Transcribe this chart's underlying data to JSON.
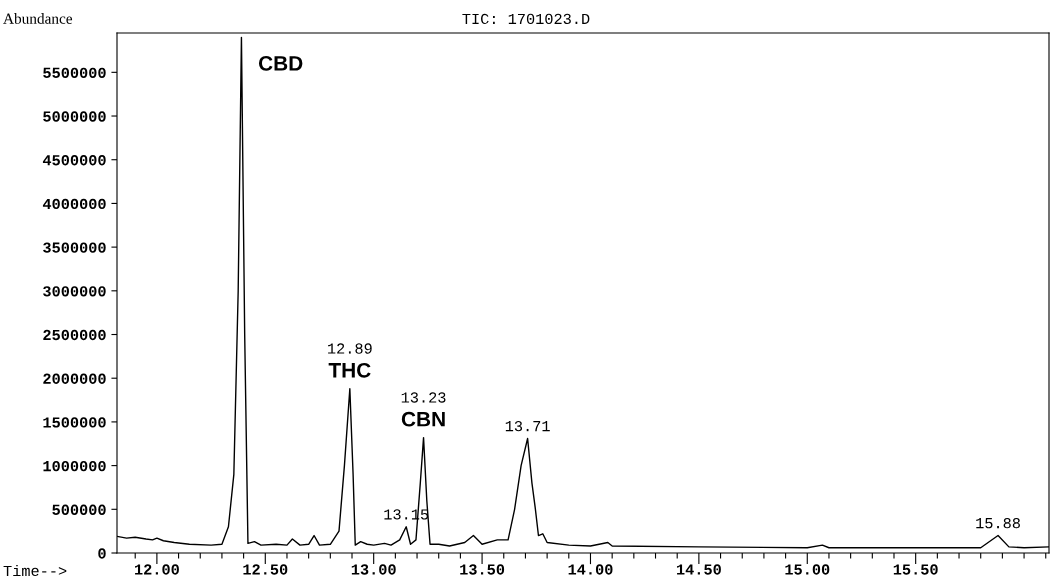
{
  "chart_data": {
    "type": "line",
    "title": "TIC: 1701023.D",
    "xlabel": "Time-->",
    "ylabel": "Abundance",
    "x": [
      11.816,
      11.86,
      11.9,
      11.95,
      11.98,
      12.0,
      12.03,
      12.08,
      12.15,
      12.25,
      12.3,
      12.33,
      12.355,
      12.375,
      12.39,
      12.405,
      12.42,
      12.45,
      12.48,
      12.55,
      12.6,
      12.625,
      12.66,
      12.7,
      12.725,
      12.75,
      12.8,
      12.84,
      12.865,
      12.89,
      12.905,
      12.915,
      12.94,
      12.97,
      13.0,
      13.05,
      13.08,
      13.12,
      13.15,
      13.17,
      13.195,
      13.215,
      13.23,
      13.245,
      13.26,
      13.3,
      13.35,
      13.42,
      13.46,
      13.5,
      13.57,
      13.62,
      13.65,
      13.68,
      13.71,
      13.73,
      13.745,
      13.76,
      13.78,
      13.8,
      13.9,
      14.0,
      14.08,
      14.1,
      14.5,
      15.0,
      15.07,
      15.1,
      15.5,
      15.8,
      15.88,
      15.93,
      16.0,
      16.115
    ],
    "series": [
      {
        "color": "#000000",
        "values": [
          190000,
          170000,
          180000,
          160000,
          150000,
          170000,
          140000,
          120000,
          100000,
          90000,
          100000,
          300000,
          900000,
          3000000,
          5900000,
          2500000,
          110000,
          130000,
          90000,
          100000,
          90000,
          160000,
          90000,
          100000,
          200000,
          90000,
          100000,
          250000,
          1000000,
          1880000,
          900000,
          90000,
          130000,
          100000,
          90000,
          110000,
          90000,
          150000,
          300000,
          100000,
          150000,
          800000,
          1320000,
          600000,
          100000,
          100000,
          80000,
          120000,
          200000,
          100000,
          150000,
          150000,
          500000,
          1000000,
          1310000,
          800000,
          520000,
          200000,
          220000,
          120000,
          90000,
          80000,
          120000,
          80000,
          70000,
          60000,
          90000,
          60000,
          60000,
          60000,
          200000,
          70000,
          60000,
          70000
        ]
      }
    ],
    "xlim": [
      11.816,
      16.115
    ],
    "xticks": [
      {
        "value": 11.9,
        "label": null
      },
      {
        "value": 12.0,
        "label": "12.00"
      },
      {
        "value": 12.1,
        "label": null
      },
      {
        "value": 12.2,
        "label": null
      },
      {
        "value": 12.3,
        "label": null
      },
      {
        "value": 12.4,
        "label": null
      },
      {
        "value": 12.5,
        "label": "12.50"
      },
      {
        "value": 12.6,
        "label": null
      },
      {
        "value": 12.7,
        "label": null
      },
      {
        "value": 12.8,
        "label": null
      },
      {
        "value": 12.9,
        "label": null
      },
      {
        "value": 13.0,
        "label": "13.00"
      },
      {
        "value": 13.1,
        "label": null
      },
      {
        "value": 13.2,
        "label": null
      },
      {
        "value": 13.3,
        "label": null
      },
      {
        "value": 13.4,
        "label": null
      },
      {
        "value": 13.5,
        "label": "13.50"
      },
      {
        "value": 13.6,
        "label": null
      },
      {
        "value": 13.7,
        "label": null
      },
      {
        "value": 13.8,
        "label": null
      },
      {
        "value": 13.9,
        "label": null
      },
      {
        "value": 14.0,
        "label": "14.00"
      },
      {
        "value": 14.1,
        "label": null
      },
      {
        "value": 14.2,
        "label": null
      },
      {
        "value": 14.3,
        "label": null
      },
      {
        "value": 14.4,
        "label": null
      },
      {
        "value": 14.5,
        "label": "14.50"
      },
      {
        "value": 14.6,
        "label": null
      },
      {
        "value": 14.7,
        "label": null
      },
      {
        "value": 14.8,
        "label": null
      },
      {
        "value": 14.9,
        "label": null
      },
      {
        "value": 15.0,
        "label": "15.00"
      },
      {
        "value": 15.1,
        "label": null
      },
      {
        "value": 15.2,
        "label": null
      },
      {
        "value": 15.3,
        "label": null
      },
      {
        "value": 15.4,
        "label": null
      },
      {
        "value": 15.5,
        "label": "15.50"
      },
      {
        "value": 15.6,
        "label": null
      },
      {
        "value": 15.7,
        "label": null
      },
      {
        "value": 15.8,
        "label": null
      },
      {
        "value": 15.9,
        "label": null
      },
      {
        "value": 16.0,
        "label": null
      },
      {
        "value": 16.1,
        "label": null
      }
    ],
    "ylim": [
      0,
      5950000
    ],
    "yticks": [
      0,
      500000,
      1000000,
      1500000,
      2000000,
      2500000,
      3000000,
      3500000,
      4000000,
      4500000,
      5000000,
      5500000
    ],
    "grid": false,
    "annotations": [
      {
        "text": "CBD",
        "x": 12.39,
        "y": 5900000
      },
      {
        "text": "THC",
        "x": 12.89,
        "y": 1880000
      },
      {
        "text": "12.89",
        "x": 12.89,
        "y": 1880000
      },
      {
        "text": "CBN",
        "x": 13.23,
        "y": 1320000
      },
      {
        "text": "13.23",
        "x": 13.23,
        "y": 1320000
      },
      {
        "text": "13.15",
        "x": 13.15,
        "y": 300000
      },
      {
        "text": "13.71",
        "x": 13.71,
        "y": 1310000
      },
      {
        "text": "15.88",
        "x": 15.88,
        "y": 200000
      }
    ]
  }
}
